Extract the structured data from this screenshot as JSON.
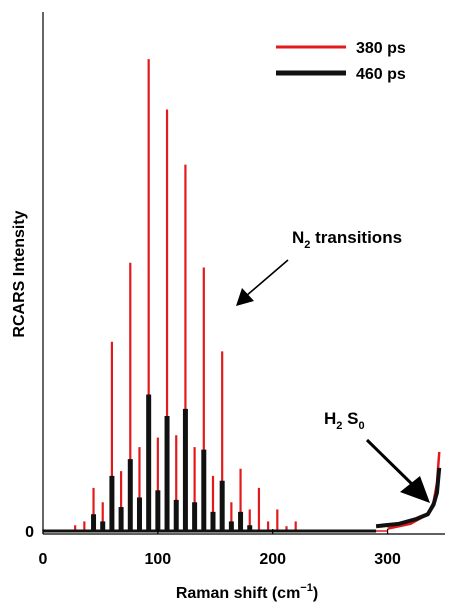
{
  "chart_data": {
    "type": "line",
    "title": "",
    "xlabel": "Raman shift (cm",
    "xlabel_sup": "−1",
    "xlabel_tail": ")",
    "ylabel": "RCARS Intensity",
    "xlim": [
      0,
      350
    ],
    "ylim": [
      0,
      1
    ],
    "x_ticks": [
      0,
      100,
      200,
      300
    ],
    "x_tick_labels": [
      "0",
      "100",
      "200",
      "300"
    ],
    "y_tick_labels": [
      "0"
    ],
    "grid": false,
    "legend_position": "top-right",
    "series": [
      {
        "name": "380 ps",
        "color": "#e31a1c",
        "peaks": [
          {
            "x": 28,
            "y": 0.012
          },
          {
            "x": 36,
            "y": 0.02
          },
          {
            "x": 44,
            "y": 0.09
          },
          {
            "x": 52,
            "y": 0.06
          },
          {
            "x": 60,
            "y": 0.395
          },
          {
            "x": 68,
            "y": 0.125
          },
          {
            "x": 76,
            "y": 0.56
          },
          {
            "x": 84,
            "y": 0.175
          },
          {
            "x": 92,
            "y": 0.985
          },
          {
            "x": 100,
            "y": 0.195
          },
          {
            "x": 108,
            "y": 0.88
          },
          {
            "x": 116,
            "y": 0.2
          },
          {
            "x": 124,
            "y": 0.765
          },
          {
            "x": 132,
            "y": 0.175
          },
          {
            "x": 140,
            "y": 0.55
          },
          {
            "x": 148,
            "y": 0.115
          },
          {
            "x": 156,
            "y": 0.375
          },
          {
            "x": 164,
            "y": 0.06
          },
          {
            "x": 172,
            "y": 0.13
          },
          {
            "x": 180,
            "y": 0.045
          },
          {
            "x": 188,
            "y": 0.09
          },
          {
            "x": 196,
            "y": 0.02
          },
          {
            "x": 204,
            "y": 0.045
          },
          {
            "x": 212,
            "y": 0.01
          },
          {
            "x": 220,
            "y": 0.02
          }
        ],
        "rise": {
          "x": [
            300,
            320,
            335,
            340,
            343,
            345
          ],
          "y": [
            0.005,
            0.015,
            0.035,
            0.06,
            0.1,
            0.165
          ]
        }
      },
      {
        "name": "460 ps",
        "color": "#111111",
        "peaks": [
          {
            "x": 44,
            "y": 0.035
          },
          {
            "x": 52,
            "y": 0.02
          },
          {
            "x": 60,
            "y": 0.115
          },
          {
            "x": 68,
            "y": 0.05
          },
          {
            "x": 76,
            "y": 0.15
          },
          {
            "x": 84,
            "y": 0.07
          },
          {
            "x": 92,
            "y": 0.285
          },
          {
            "x": 100,
            "y": 0.085
          },
          {
            "x": 108,
            "y": 0.24
          },
          {
            "x": 116,
            "y": 0.065
          },
          {
            "x": 124,
            "y": 0.255
          },
          {
            "x": 132,
            "y": 0.06
          },
          {
            "x": 140,
            "y": 0.17
          },
          {
            "x": 148,
            "y": 0.04
          },
          {
            "x": 156,
            "y": 0.105
          },
          {
            "x": 164,
            "y": 0.02
          },
          {
            "x": 172,
            "y": 0.04
          },
          {
            "x": 180,
            "y": 0.012
          }
        ],
        "rise": {
          "x": [
            290,
            310,
            325,
            335,
            340,
            343,
            345
          ],
          "y": [
            0.01,
            0.015,
            0.025,
            0.035,
            0.055,
            0.08,
            0.132
          ]
        }
      }
    ],
    "annotations": [
      {
        "text": "N",
        "sub": "2",
        "tail": " transitions"
      },
      {
        "text": "H",
        "sub": "2",
        "tail": " S",
        "sub2": "0"
      }
    ]
  }
}
